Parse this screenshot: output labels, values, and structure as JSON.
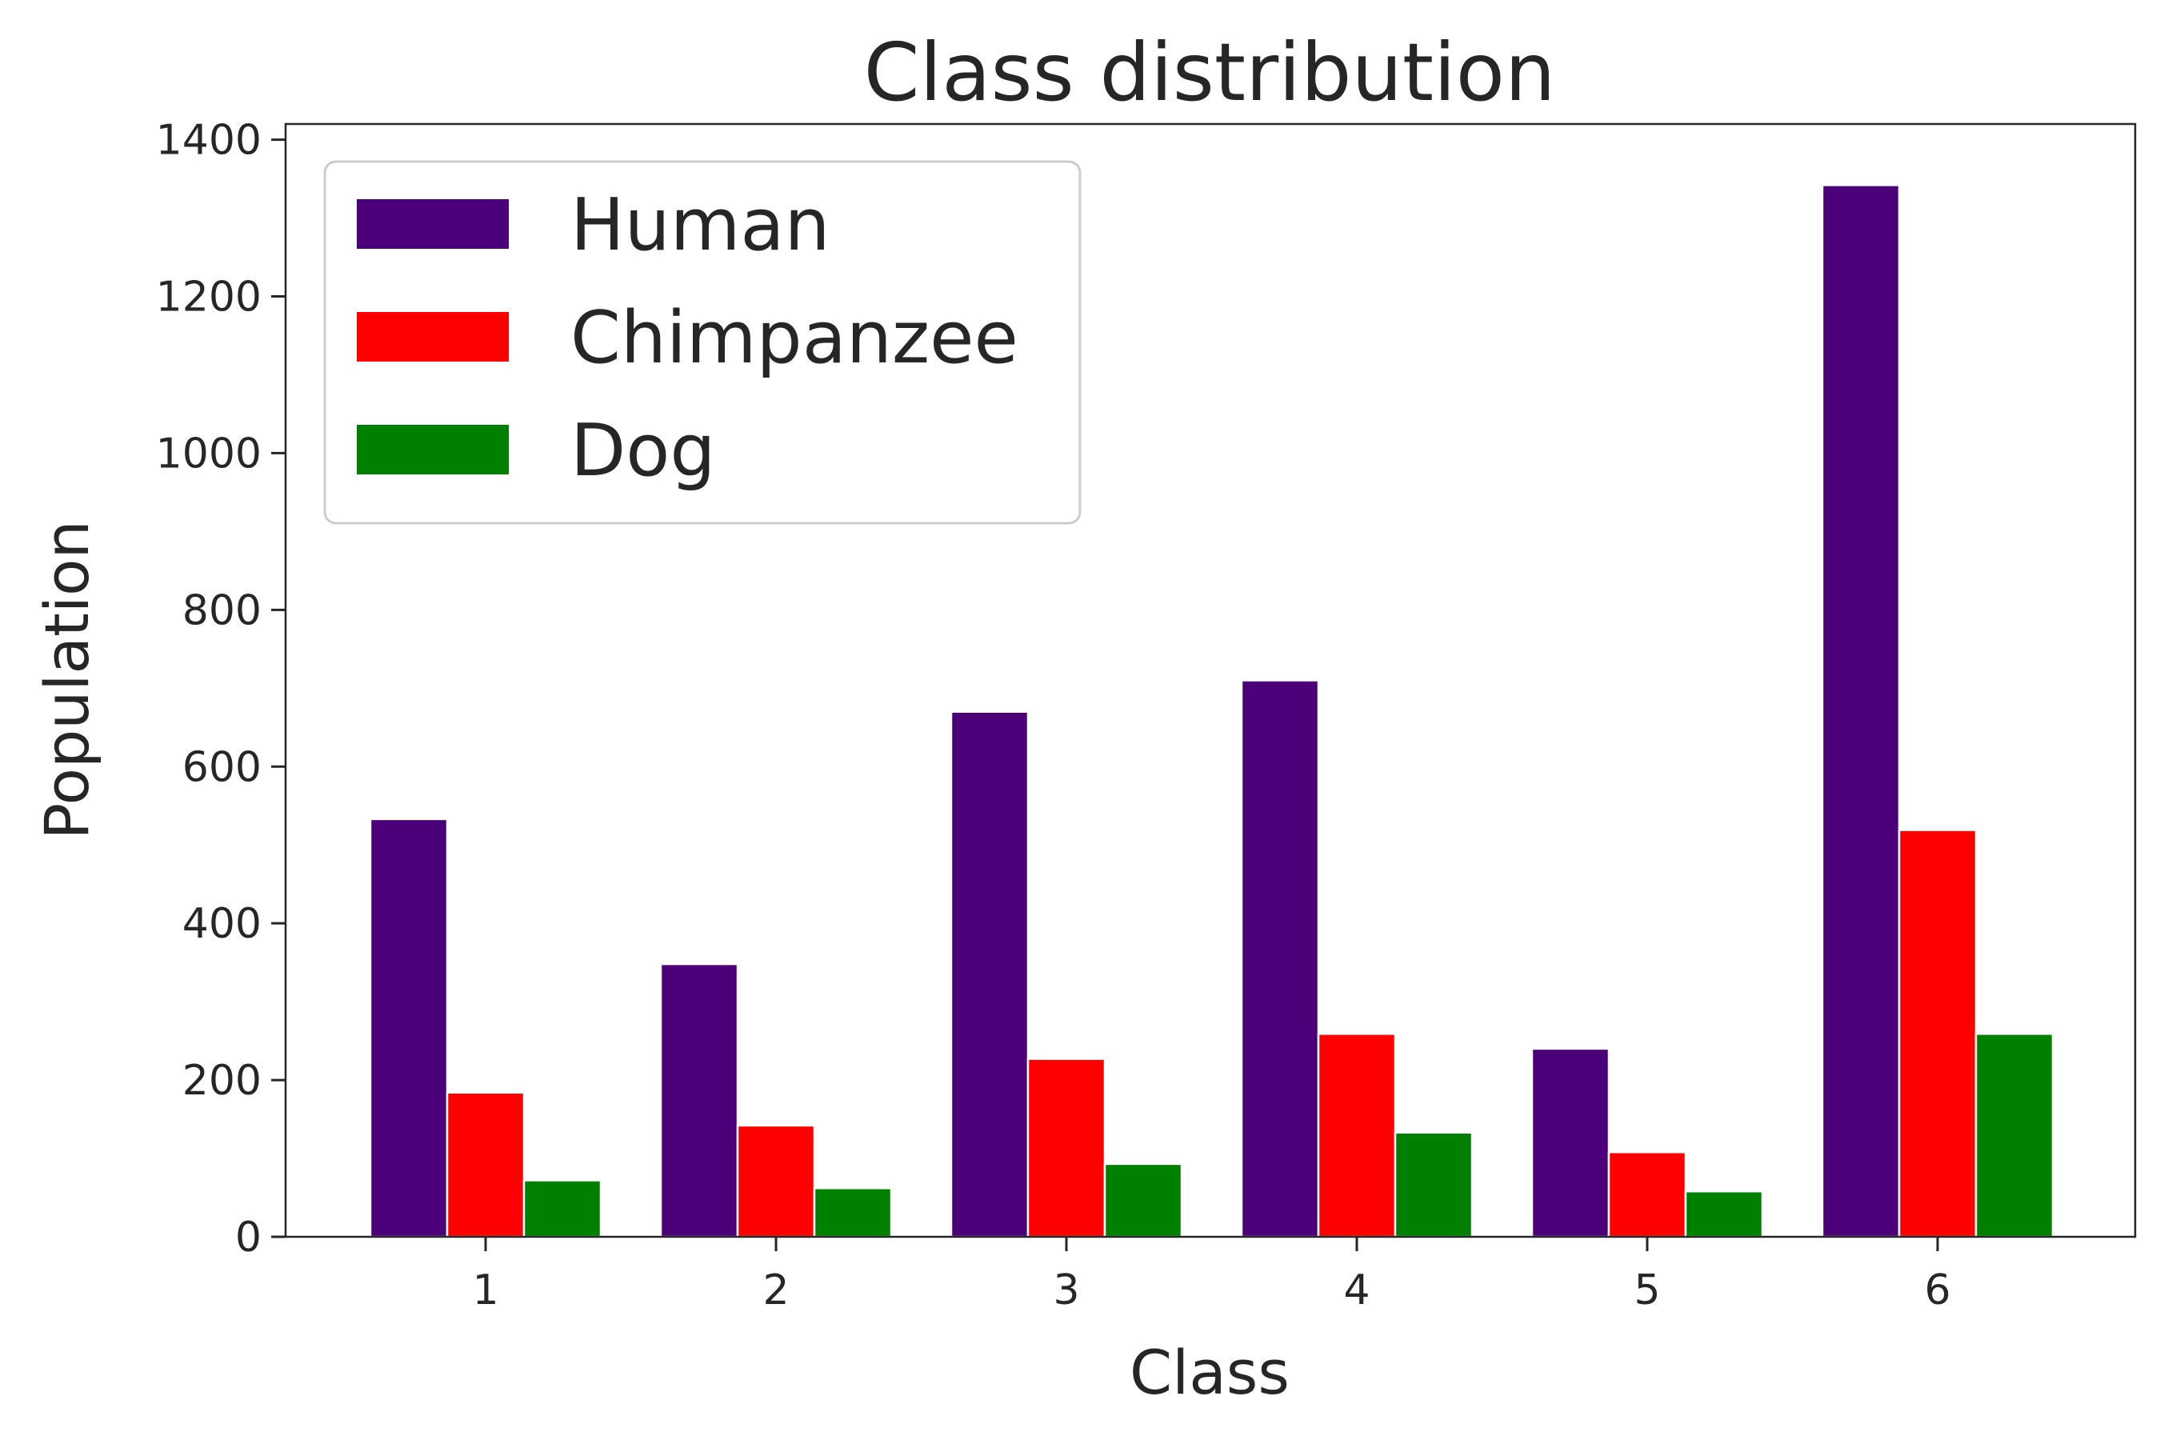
{
  "chart_data": {
    "type": "bar",
    "title": "Class distribution",
    "xlabel": "Class",
    "ylabel": "Population",
    "categories": [
      "1",
      "2",
      "3",
      "4",
      "5",
      "6"
    ],
    "ylim": [
      0,
      1420
    ],
    "yticks": [
      "0",
      "200",
      "400",
      "600",
      "800",
      "1000",
      "1200",
      "1400"
    ],
    "grid": false,
    "legend_position": "top-left",
    "series": [
      {
        "name": "Human",
        "color": "#4b0079",
        "values": [
          533,
          348,
          670,
          710,
          240,
          1342
        ]
      },
      {
        "name": "Chimpanzee",
        "color": "#ff0000",
        "values": [
          184,
          142,
          227,
          259,
          108,
          519
        ]
      },
      {
        "name": "Dog",
        "color": "#008000",
        "values": [
          72,
          62,
          93,
          133,
          58,
          259
        ]
      }
    ]
  }
}
